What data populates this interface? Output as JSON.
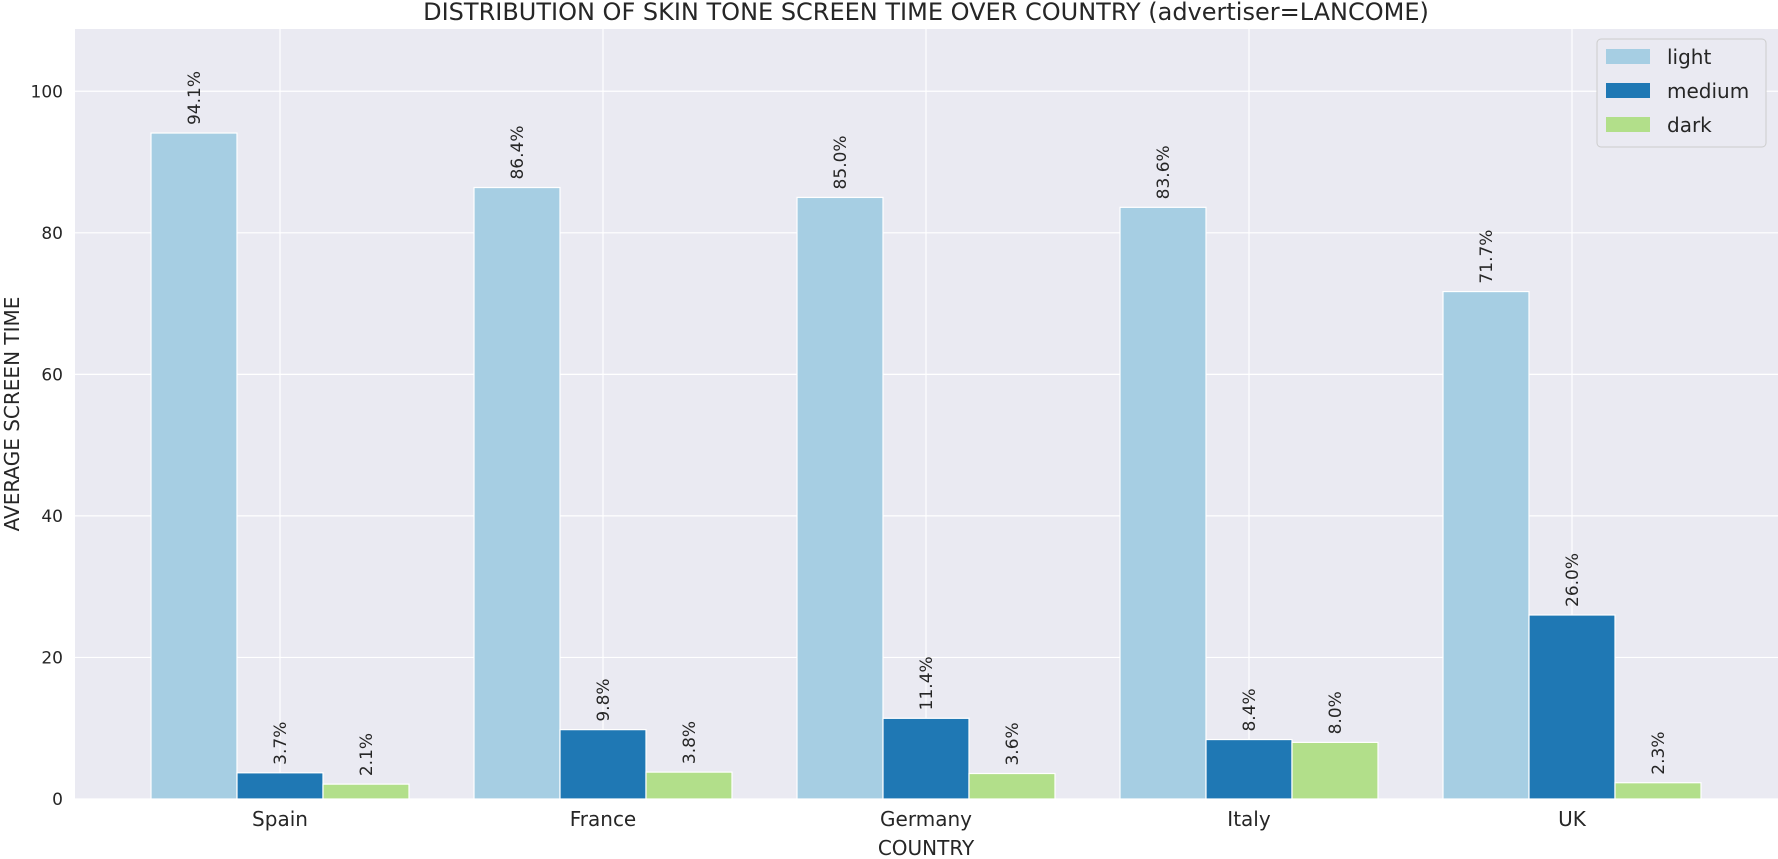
{
  "chart_data": {
    "type": "bar",
    "title": "DISTRIBUTION OF SKIN TONE SCREEN TIME OVER COUNTRY (advertiser=LANCOME)",
    "xlabel": "COUNTRY",
    "ylabel": "AVERAGE SCREEN TIME",
    "categories": [
      "Spain",
      "France",
      "Germany",
      "Italy",
      "UK"
    ],
    "ylim": [
      0,
      108.8
    ],
    "yticks": [
      0,
      20,
      40,
      60,
      80,
      100
    ],
    "grid": true,
    "legend_position": "top-right",
    "series": [
      {
        "name": "light",
        "color": "#a6cee3",
        "values": [
          94.1,
          86.4,
          85.0,
          83.6,
          71.7
        ],
        "labels": [
          "94.1%",
          "86.4%",
          "85.0%",
          "83.6%",
          "71.7%"
        ]
      },
      {
        "name": "medium",
        "color": "#1f78b4",
        "values": [
          3.7,
          9.8,
          11.4,
          8.4,
          26.0
        ],
        "labels": [
          "3.7%",
          "9.8%",
          "11.4%",
          "8.4%",
          "26.0%"
        ]
      },
      {
        "name": "dark",
        "color": "#b2df8a",
        "values": [
          2.1,
          3.8,
          3.6,
          8.0,
          2.3
        ],
        "labels": [
          "2.1%",
          "3.8%",
          "3.6%",
          "8.0%",
          "2.3%"
        ]
      }
    ]
  }
}
